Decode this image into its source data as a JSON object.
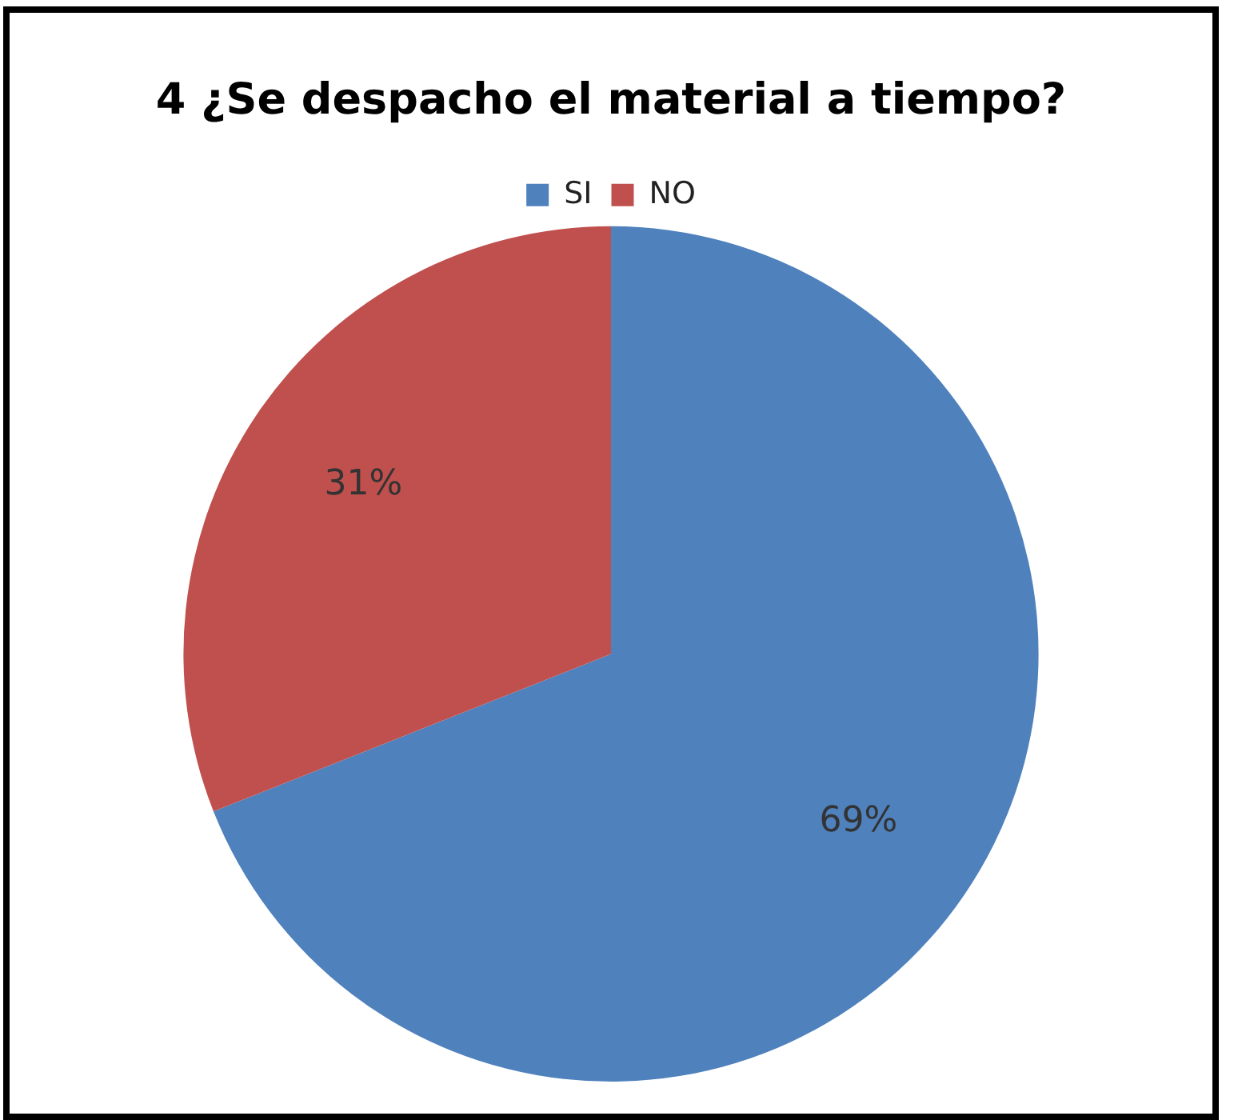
{
  "chart_data": {
    "type": "pie",
    "title": "4 ¿Se despacho el material a tiempo?",
    "categories": [
      "SI",
      "NO"
    ],
    "values": [
      69,
      31
    ],
    "value_labels": [
      "69%",
      "31%"
    ],
    "colors": [
      "#4f81bd",
      "#c0504d"
    ],
    "legend": "top"
  }
}
